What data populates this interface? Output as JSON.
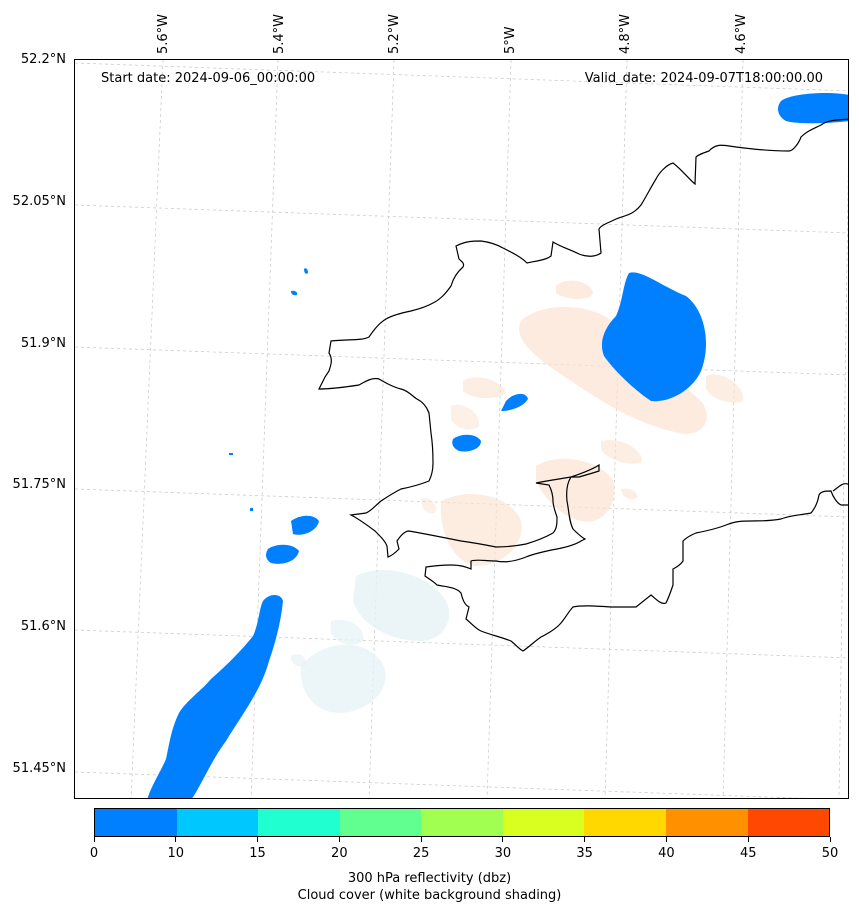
{
  "annotations": {
    "start_date": "Start date: 2024-09-06_00:00:00",
    "valid_date": "Valid_date: 2024-09-07T18:00:00.00"
  },
  "axes": {
    "lat_labels": [
      "52.2°N",
      "52.05°N",
      "51.9°N",
      "51.75°N",
      "51.6°N",
      "51.45°N"
    ],
    "lon_labels": [
      "5.6°W",
      "5.4°W",
      "5.2°W",
      "5°W",
      "4.8°W",
      "4.6°W"
    ]
  },
  "colorbar": {
    "ticks": [
      "0",
      "10",
      "15",
      "20",
      "25",
      "30",
      "35",
      "40",
      "45",
      "50"
    ],
    "colors": [
      "#0080ff",
      "#00c8ff",
      "#20ffd0",
      "#60ff90",
      "#a0ff50",
      "#d8ff20",
      "#ffd800",
      "#ff9000",
      "#ff4800"
    ],
    "label_line1": "300 hPa reflectivity (dbz)",
    "label_line2": "Cloud cover (white background shading)"
  },
  "colors": {
    "reflectivity_low": "#0080ff",
    "cloud_warm": "#fbe3d0",
    "cloud_cool": "#e6f2f5",
    "coastline": "#000000",
    "gridline": "#cccccc"
  }
}
